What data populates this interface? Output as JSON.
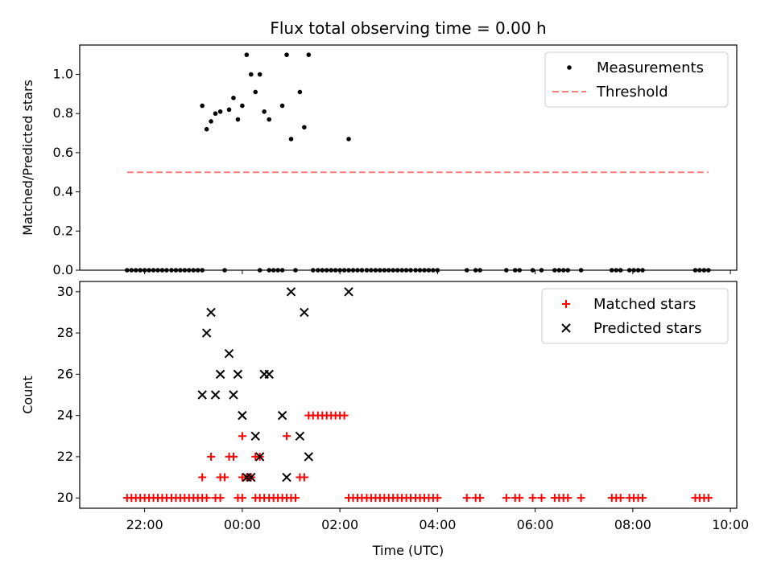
{
  "title": "Flux total observing time = 0.00 h",
  "chart_data": [
    {
      "type": "scatter",
      "ylabel": "Matched/Predicted stars",
      "xlim_hours": [
        20.67,
        34.13
      ],
      "ylim": [
        0.0,
        1.15
      ],
      "yticks": [
        0.0,
        0.2,
        0.4,
        0.6,
        0.8,
        1.0
      ],
      "ytick_labels": [
        "0.0",
        "0.2",
        "0.4",
        "0.6",
        "0.8",
        "1.0"
      ],
      "legend_position": "upper right",
      "series": [
        {
          "name": "Measurements",
          "color": "#000000",
          "marker": "dot",
          "points": [
            [
              23.18,
              0.84
            ],
            [
              23.27,
              0.72
            ],
            [
              23.36,
              0.76
            ],
            [
              23.45,
              0.8
            ],
            [
              23.55,
              0.81
            ],
            [
              23.73,
              0.82
            ],
            [
              23.82,
              0.88
            ],
            [
              23.91,
              0.77
            ],
            [
              24.0,
              0.84
            ],
            [
              24.09,
              1.1
            ],
            [
              24.18,
              1.0
            ],
            [
              24.27,
              0.91
            ],
            [
              24.36,
              1.0
            ],
            [
              24.45,
              0.81
            ],
            [
              24.55,
              0.77
            ],
            [
              24.55,
              0.0
            ],
            [
              24.64,
              0.0
            ],
            [
              24.82,
              0.84
            ],
            [
              24.91,
              1.1
            ],
            [
              25.0,
              0.67
            ],
            [
              25.18,
              0.91
            ],
            [
              25.27,
              0.73
            ],
            [
              25.36,
              1.1
            ],
            [
              26.18,
              0.67
            ],
            [
              21.64,
              0.0
            ],
            [
              21.73,
              0.0
            ],
            [
              21.82,
              0.0
            ],
            [
              21.91,
              0.0
            ],
            [
              22.0,
              0.0
            ],
            [
              22.09,
              0.0
            ],
            [
              22.18,
              0.0
            ],
            [
              22.27,
              0.0
            ],
            [
              22.36,
              0.0
            ],
            [
              22.45,
              0.0
            ],
            [
              22.55,
              0.0
            ],
            [
              22.64,
              0.0
            ],
            [
              22.73,
              0.0
            ],
            [
              22.82,
              0.0
            ],
            [
              22.91,
              0.0
            ],
            [
              23.0,
              0.0
            ],
            [
              23.09,
              0.0
            ],
            [
              23.18,
              0.0
            ],
            [
              23.64,
              0.0
            ],
            [
              24.36,
              0.0
            ],
            [
              24.73,
              0.0
            ],
            [
              24.82,
              0.0
            ],
            [
              25.09,
              0.0
            ],
            [
              25.45,
              0.0
            ],
            [
              25.55,
              0.0
            ],
            [
              25.64,
              0.0
            ],
            [
              25.73,
              0.0
            ],
            [
              25.82,
              0.0
            ],
            [
              25.91,
              0.0
            ],
            [
              26.0,
              0.0
            ],
            [
              26.09,
              0.0
            ],
            [
              26.18,
              0.0
            ],
            [
              26.27,
              0.0
            ],
            [
              26.36,
              0.0
            ],
            [
              26.45,
              0.0
            ],
            [
              26.55,
              0.0
            ],
            [
              26.64,
              0.0
            ],
            [
              26.73,
              0.0
            ],
            [
              26.82,
              0.0
            ],
            [
              26.91,
              0.0
            ],
            [
              27.0,
              0.0
            ],
            [
              27.09,
              0.0
            ],
            [
              27.18,
              0.0
            ],
            [
              27.27,
              0.0
            ],
            [
              27.36,
              0.0
            ],
            [
              27.45,
              0.0
            ],
            [
              27.55,
              0.0
            ],
            [
              27.64,
              0.0
            ],
            [
              27.73,
              0.0
            ],
            [
              27.82,
              0.0
            ],
            [
              27.91,
              0.0
            ],
            [
              28.0,
              0.0
            ],
            [
              28.6,
              0.0
            ],
            [
              28.78,
              0.0
            ],
            [
              28.87,
              0.0
            ],
            [
              29.41,
              0.0
            ],
            [
              29.59,
              0.0
            ],
            [
              29.68,
              0.0
            ],
            [
              29.95,
              0.0
            ],
            [
              30.13,
              0.0
            ],
            [
              30.4,
              0.0
            ],
            [
              30.49,
              0.0
            ],
            [
              30.58,
              0.0
            ],
            [
              30.67,
              0.0
            ],
            [
              30.94,
              0.0
            ],
            [
              31.57,
              0.0
            ],
            [
              31.66,
              0.0
            ],
            [
              31.75,
              0.0
            ],
            [
              31.93,
              0.0
            ],
            [
              32.02,
              0.0
            ],
            [
              32.11,
              0.0
            ],
            [
              32.2,
              0.0
            ],
            [
              33.28,
              0.0
            ],
            [
              33.37,
              0.0
            ],
            [
              33.46,
              0.0
            ],
            [
              33.55,
              0.0
            ]
          ]
        },
        {
          "name": "Threshold",
          "color": "#ff7f7f",
          "style": "dashed",
          "points": [
            [
              21.64,
              0.5
            ],
            [
              33.55,
              0.5
            ]
          ]
        }
      ]
    },
    {
      "type": "scatter",
      "xlabel": "Time (UTC)",
      "ylabel": "Count",
      "xlim_hours": [
        20.67,
        34.13
      ],
      "ylim": [
        19.5,
        30.5
      ],
      "yticks": [
        20,
        22,
        24,
        26,
        28,
        30
      ],
      "ytick_labels": [
        "20",
        "22",
        "24",
        "26",
        "28",
        "30"
      ],
      "xticks_hours": [
        22,
        24,
        26,
        28,
        30,
        32,
        34
      ],
      "xtick_labels": [
        "22:00",
        "00:00",
        "02:00",
        "04:00",
        "06:00",
        "08:00",
        "10:00"
      ],
      "legend_position": "upper right",
      "series": [
        {
          "name": "Matched stars",
          "color": "#ff0000",
          "marker": "plus",
          "points": [
            [
              21.64,
              20
            ],
            [
              21.73,
              20
            ],
            [
              21.82,
              20
            ],
            [
              21.91,
              20
            ],
            [
              22.0,
              20
            ],
            [
              22.09,
              20
            ],
            [
              22.18,
              20
            ],
            [
              22.27,
              20
            ],
            [
              22.36,
              20
            ],
            [
              22.45,
              20
            ],
            [
              22.55,
              20
            ],
            [
              22.64,
              20
            ],
            [
              22.73,
              20
            ],
            [
              22.82,
              20
            ],
            [
              22.91,
              20
            ],
            [
              23.0,
              20
            ],
            [
              23.09,
              20
            ],
            [
              23.18,
              20
            ],
            [
              23.27,
              20
            ],
            [
              23.45,
              20
            ],
            [
              23.55,
              20
            ],
            [
              23.91,
              20
            ],
            [
              24.0,
              20
            ],
            [
              24.27,
              20
            ],
            [
              24.36,
              20
            ],
            [
              24.45,
              20
            ],
            [
              24.55,
              20
            ],
            [
              24.64,
              20
            ],
            [
              24.73,
              20
            ],
            [
              24.82,
              20
            ],
            [
              24.91,
              20
            ],
            [
              25.0,
              20
            ],
            [
              25.09,
              20
            ],
            [
              26.18,
              20
            ],
            [
              26.27,
              20
            ],
            [
              26.36,
              20
            ],
            [
              26.45,
              20
            ],
            [
              26.55,
              20
            ],
            [
              26.64,
              20
            ],
            [
              26.73,
              20
            ],
            [
              26.82,
              20
            ],
            [
              26.91,
              20
            ],
            [
              27.0,
              20
            ],
            [
              27.09,
              20
            ],
            [
              27.18,
              20
            ],
            [
              27.27,
              20
            ],
            [
              27.36,
              20
            ],
            [
              27.45,
              20
            ],
            [
              27.55,
              20
            ],
            [
              27.64,
              20
            ],
            [
              27.73,
              20
            ],
            [
              27.82,
              20
            ],
            [
              27.91,
              20
            ],
            [
              28.0,
              20
            ],
            [
              28.6,
              20
            ],
            [
              28.78,
              20
            ],
            [
              28.87,
              20
            ],
            [
              29.41,
              20
            ],
            [
              29.59,
              20
            ],
            [
              29.68,
              20
            ],
            [
              29.95,
              20
            ],
            [
              30.13,
              20
            ],
            [
              30.4,
              20
            ],
            [
              30.49,
              20
            ],
            [
              30.58,
              20
            ],
            [
              30.67,
              20
            ],
            [
              30.94,
              20
            ],
            [
              31.57,
              20
            ],
            [
              31.66,
              20
            ],
            [
              31.75,
              20
            ],
            [
              31.93,
              20
            ],
            [
              32.02,
              20
            ],
            [
              32.11,
              20
            ],
            [
              32.2,
              20
            ],
            [
              33.28,
              20
            ],
            [
              33.37,
              20
            ],
            [
              33.46,
              20
            ],
            [
              33.55,
              20
            ],
            [
              23.18,
              21
            ],
            [
              23.55,
              21
            ],
            [
              23.64,
              21
            ],
            [
              24.0,
              21
            ],
            [
              24.09,
              21
            ],
            [
              24.18,
              21
            ],
            [
              25.18,
              21
            ],
            [
              25.27,
              21
            ],
            [
              23.36,
              22
            ],
            [
              23.73,
              22
            ],
            [
              23.82,
              22
            ],
            [
              24.27,
              22
            ],
            [
              24.36,
              22
            ],
            [
              24.0,
              23
            ],
            [
              24.91,
              23
            ],
            [
              25.36,
              24
            ],
            [
              25.45,
              24
            ],
            [
              25.55,
              24
            ],
            [
              25.64,
              24
            ],
            [
              25.73,
              24
            ],
            [
              25.82,
              24
            ],
            [
              25.91,
              24
            ],
            [
              26.0,
              24
            ],
            [
              26.09,
              24
            ]
          ]
        },
        {
          "name": "Predicted stars",
          "color": "#000000",
          "marker": "x",
          "points": [
            [
              23.18,
              25
            ],
            [
              23.27,
              28
            ],
            [
              23.36,
              29
            ],
            [
              23.45,
              25
            ],
            [
              23.55,
              26
            ],
            [
              23.73,
              27
            ],
            [
              23.82,
              25
            ],
            [
              23.91,
              26
            ],
            [
              24.0,
              24
            ],
            [
              24.09,
              21
            ],
            [
              24.18,
              21
            ],
            [
              24.27,
              23
            ],
            [
              24.36,
              22
            ],
            [
              24.45,
              26
            ],
            [
              24.55,
              26
            ],
            [
              24.82,
              24
            ],
            [
              24.91,
              21
            ],
            [
              25.0,
              30
            ],
            [
              25.18,
              23
            ],
            [
              25.27,
              29
            ],
            [
              25.36,
              22
            ],
            [
              26.18,
              30
            ]
          ]
        }
      ]
    }
  ]
}
